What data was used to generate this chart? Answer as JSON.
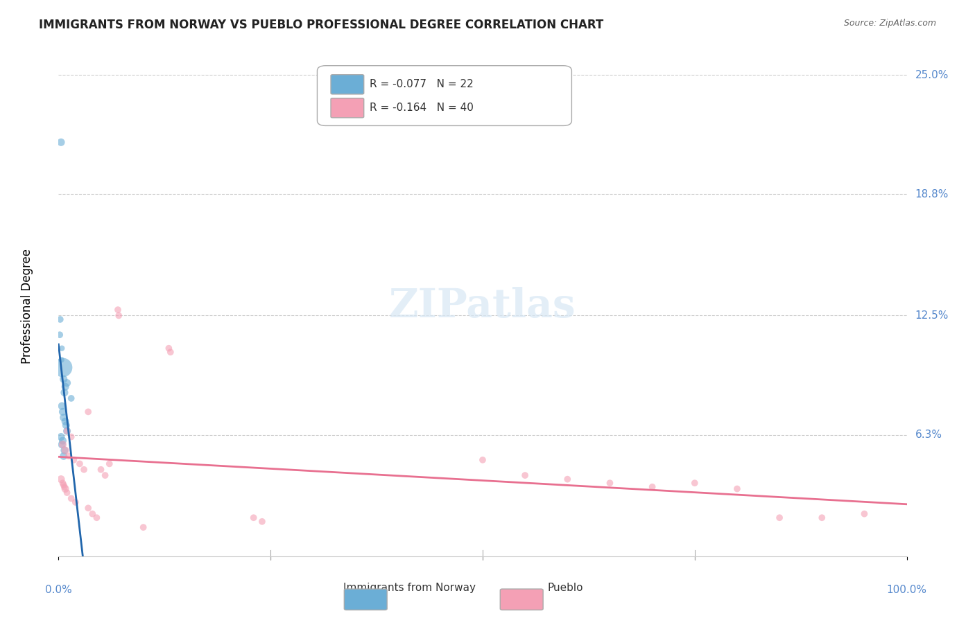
{
  "title": "IMMIGRANTS FROM NORWAY VS PUEBLO PROFESSIONAL DEGREE CORRELATION CHART",
  "source": "Source: ZipAtlas.com",
  "xlabel": "",
  "ylabel": "Professional Degree",
  "legend_label1": "Immigrants from Norway",
  "legend_label2": "Pueblo",
  "r1": -0.077,
  "n1": 22,
  "r2": -0.164,
  "n2": 40,
  "color1": "#6baed6",
  "color2": "#f4a0b5",
  "line_color1": "#2166ac",
  "line_color2": "#e87090",
  "ytick_labels": [
    "25.0%",
    "18.8%",
    "12.5%",
    "6.3%"
  ],
  "ytick_values": [
    25.0,
    18.8,
    12.5,
    6.3
  ],
  "xtick_labels": [
    "0.0%",
    "100.0%"
  ],
  "xlim": [
    0,
    100
  ],
  "ylim": [
    0,
    26
  ],
  "blue_points": [
    [
      0.3,
      21.5,
      8
    ],
    [
      0.2,
      12.3,
      7
    ],
    [
      0.15,
      11.5,
      7
    ],
    [
      0.4,
      10.8,
      6
    ],
    [
      0.35,
      10.2,
      6
    ],
    [
      0.5,
      9.8,
      20
    ],
    [
      0.6,
      9.2,
      8
    ],
    [
      1.0,
      9.0,
      8
    ],
    [
      0.8,
      8.8,
      8
    ],
    [
      0.7,
      8.5,
      8
    ],
    [
      1.5,
      8.2,
      7
    ],
    [
      0.4,
      7.8,
      8
    ],
    [
      0.5,
      7.5,
      8
    ],
    [
      0.6,
      7.2,
      8
    ],
    [
      0.8,
      7.0,
      8
    ],
    [
      0.9,
      6.8,
      8
    ],
    [
      1.0,
      6.5,
      8
    ],
    [
      0.3,
      6.2,
      8
    ],
    [
      0.5,
      6.0,
      8
    ],
    [
      0.4,
      5.8,
      8
    ],
    [
      0.7,
      5.5,
      8
    ],
    [
      0.6,
      5.2,
      8
    ]
  ],
  "pink_points": [
    [
      7.0,
      12.8,
      7
    ],
    [
      7.1,
      12.5,
      7
    ],
    [
      13.0,
      10.8,
      7
    ],
    [
      13.2,
      10.6,
      7
    ],
    [
      3.5,
      7.5,
      7
    ],
    [
      1.0,
      6.5,
      7
    ],
    [
      1.5,
      6.2,
      7
    ],
    [
      0.5,
      5.8,
      8
    ],
    [
      0.8,
      5.5,
      8
    ],
    [
      1.2,
      5.2,
      7
    ],
    [
      1.8,
      5.0,
      7
    ],
    [
      2.5,
      4.8,
      7
    ],
    [
      3.0,
      4.5,
      7
    ],
    [
      5.0,
      4.5,
      7
    ],
    [
      5.5,
      4.2,
      7
    ],
    [
      0.3,
      4.0,
      8
    ],
    [
      0.5,
      3.8,
      7
    ],
    [
      0.6,
      3.7,
      7
    ],
    [
      0.7,
      3.6,
      7
    ],
    [
      0.8,
      3.5,
      8
    ],
    [
      1.0,
      3.3,
      7
    ],
    [
      1.5,
      3.0,
      7
    ],
    [
      2.0,
      2.8,
      7
    ],
    [
      3.5,
      2.5,
      7
    ],
    [
      4.0,
      2.2,
      7
    ],
    [
      4.5,
      2.0,
      7
    ],
    [
      6.0,
      4.8,
      7
    ],
    [
      50.0,
      5.0,
      7
    ],
    [
      55.0,
      4.2,
      7
    ],
    [
      60.0,
      4.0,
      7
    ],
    [
      65.0,
      3.8,
      7
    ],
    [
      70.0,
      3.6,
      7
    ],
    [
      75.0,
      3.8,
      7
    ],
    [
      80.0,
      3.5,
      7
    ],
    [
      85.0,
      2.0,
      7
    ],
    [
      90.0,
      2.0,
      7
    ],
    [
      95.0,
      2.2,
      7
    ],
    [
      23.0,
      2.0,
      7
    ],
    [
      24.0,
      1.8,
      7
    ],
    [
      10.0,
      1.5,
      7
    ]
  ]
}
